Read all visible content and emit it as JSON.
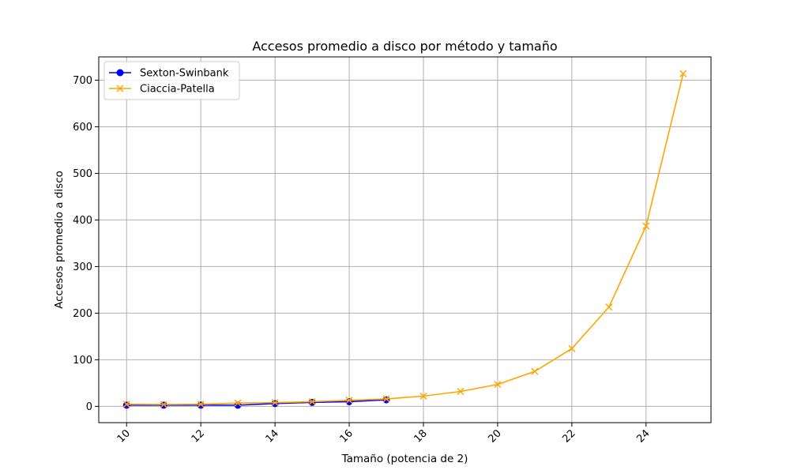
{
  "chart_data": {
    "type": "line",
    "title": "Accesos promedio a disco por método y tamaño",
    "xlabel": "Tamaño (potencia de 2)",
    "ylabel": "Accesos promedio a disco",
    "xlim": [
      9.25,
      25.75
    ],
    "ylim": [
      -35,
      750
    ],
    "xticks": [
      10,
      12,
      14,
      16,
      18,
      20,
      22,
      24
    ],
    "yticks": [
      0,
      100,
      200,
      300,
      400,
      500,
      600,
      700
    ],
    "grid": true,
    "legend_position": "top-left",
    "series": [
      {
        "name": "Sexton-Swinbank",
        "color": "#0000ff",
        "marker": "circle",
        "x": [
          10,
          11,
          12,
          13,
          14,
          15,
          16,
          17
        ],
        "y": [
          2.5,
          2.5,
          2.5,
          2.5,
          6,
          8.5,
          10,
          14
        ]
      },
      {
        "name": "Ciaccia-Patella",
        "color": "#ffa500",
        "marker": "x",
        "x": [
          10,
          11,
          12,
          13,
          14,
          15,
          16,
          17,
          18,
          19,
          20,
          21,
          22,
          23,
          24,
          25
        ],
        "y": [
          4.5,
          4,
          4.5,
          7,
          8,
          10,
          13,
          16,
          22,
          32,
          47,
          75,
          124,
          213,
          387,
          714
        ]
      }
    ]
  }
}
